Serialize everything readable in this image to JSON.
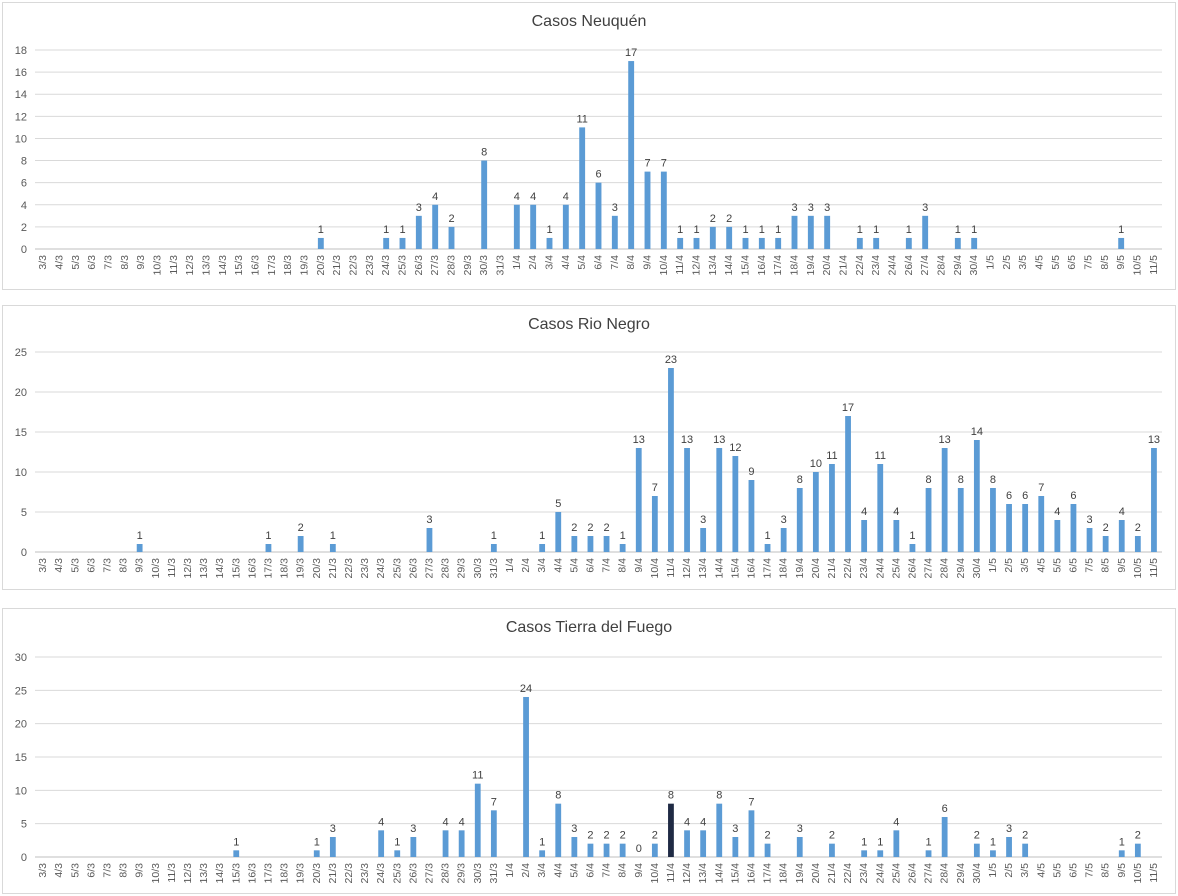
{
  "chart_data": [
    {
      "type": "bar",
      "title": "Casos Neuquén",
      "ylim": [
        0,
        18
      ],
      "ytick_step": 2,
      "grid": true,
      "color": "#5b9bd5",
      "categories": [
        "3/3",
        "4/3",
        "5/3",
        "6/3",
        "7/3",
        "8/3",
        "9/3",
        "10/3",
        "11/3",
        "12/3",
        "13/3",
        "14/3",
        "15/3",
        "16/3",
        "17/3",
        "18/3",
        "19/3",
        "20/3",
        "21/3",
        "22/3",
        "23/3",
        "24/3",
        "25/3",
        "26/3",
        "27/3",
        "28/3",
        "29/3",
        "30/3",
        "31/3",
        "1/4",
        "2/4",
        "3/4",
        "4/4",
        "5/4",
        "6/4",
        "7/4",
        "8/4",
        "9/4",
        "10/4",
        "11/4",
        "12/4",
        "13/4",
        "14/4",
        "15/4",
        "16/4",
        "17/4",
        "18/4",
        "19/4",
        "20/4",
        "21/4",
        "22/4",
        "23/4",
        "24/4",
        "26/4",
        "27/4",
        "28/4",
        "29/4",
        "30/4",
        "1/5",
        "2/5",
        "3/5",
        "4/5",
        "5/5",
        "6/5",
        "7/5",
        "8/5",
        "9/5",
        "10/5",
        "11/5"
      ],
      "values": [
        null,
        null,
        null,
        null,
        null,
        null,
        null,
        null,
        null,
        null,
        null,
        null,
        null,
        null,
        null,
        null,
        null,
        1,
        null,
        null,
        null,
        1,
        1,
        3,
        4,
        2,
        null,
        8,
        null,
        4,
        4,
        1,
        4,
        11,
        6,
        3,
        17,
        7,
        7,
        1,
        1,
        2,
        2,
        1,
        1,
        1,
        3,
        3,
        3,
        null,
        1,
        1,
        null,
        1,
        3,
        null,
        1,
        1,
        null,
        null,
        null,
        null,
        null,
        null,
        null,
        null,
        1,
        null,
        null
      ]
    },
    {
      "type": "bar",
      "title": "Casos Rio Negro",
      "ylim": [
        0,
        25
      ],
      "ytick_step": 5,
      "grid": true,
      "color": "#5b9bd5",
      "categories": [
        "3/3",
        "4/3",
        "5/3",
        "6/3",
        "7/3",
        "8/3",
        "9/3",
        "10/3",
        "11/3",
        "12/3",
        "13/3",
        "14/3",
        "15/3",
        "16/3",
        "17/3",
        "18/3",
        "19/3",
        "20/3",
        "21/3",
        "22/3",
        "23/3",
        "24/3",
        "25/3",
        "26/3",
        "27/3",
        "28/3",
        "29/3",
        "30/3",
        "31/3",
        "1/4",
        "2/4",
        "3/4",
        "4/4",
        "5/4",
        "6/4",
        "7/4",
        "8/4",
        "9/4",
        "10/4",
        "11/4",
        "12/4",
        "13/4",
        "14/4",
        "15/4",
        "16/4",
        "17/4",
        "18/4",
        "19/4",
        "20/4",
        "21/4",
        "22/4",
        "23/4",
        "24/4",
        "25/4",
        "26/4",
        "27/4",
        "28/4",
        "29/4",
        "30/4",
        "1/5",
        "2/5",
        "3/5",
        "4/5",
        "5/5",
        "6/5",
        "7/5",
        "8/5",
        "9/5",
        "10/5",
        "11/5"
      ],
      "values": [
        null,
        null,
        null,
        null,
        null,
        null,
        1,
        null,
        null,
        null,
        null,
        null,
        null,
        null,
        1,
        null,
        2,
        null,
        1,
        null,
        null,
        null,
        null,
        null,
        3,
        null,
        null,
        null,
        1,
        null,
        null,
        1,
        5,
        2,
        2,
        2,
        1,
        13,
        7,
        23,
        13,
        3,
        13,
        12,
        9,
        1,
        3,
        8,
        10,
        11,
        17,
        4,
        11,
        4,
        1,
        8,
        13,
        8,
        14,
        8,
        6,
        6,
        7,
        4,
        6,
        3,
        2,
        4,
        2,
        13
      ]
    },
    {
      "type": "bar",
      "title": "Casos Tierra del Fuego",
      "ylim": [
        0,
        30
      ],
      "ytick_step": 5,
      "grid": true,
      "color": "#5b9bd5",
      "highlight_color": "#1f2a44",
      "highlight_index": 39,
      "categories": [
        "3/3",
        "4/3",
        "5/3",
        "6/3",
        "7/3",
        "8/3",
        "9/3",
        "10/3",
        "11/3",
        "12/3",
        "13/3",
        "14/3",
        "15/3",
        "16/3",
        "17/3",
        "18/3",
        "19/3",
        "20/3",
        "21/3",
        "22/3",
        "23/3",
        "24/3",
        "25/3",
        "26/3",
        "27/3",
        "28/3",
        "29/3",
        "30/3",
        "31/3",
        "1/4",
        "2/4",
        "3/4",
        "4/4",
        "5/4",
        "6/4",
        "7/4",
        "8/4",
        "9/4",
        "10/4",
        "11/4",
        "12/4",
        "13/4",
        "14/4",
        "15/4",
        "16/4",
        "17/4",
        "18/4",
        "19/4",
        "20/4",
        "21/4",
        "22/4",
        "23/4",
        "24/4",
        "25/4",
        "26/4",
        "27/4",
        "28/4",
        "29/4",
        "30/4",
        "1/5",
        "2/5",
        "3/5",
        "4/5",
        "5/5",
        "6/5",
        "7/5",
        "8/5",
        "9/5",
        "10/5",
        "11/5"
      ],
      "values": [
        null,
        null,
        null,
        null,
        null,
        null,
        null,
        null,
        null,
        null,
        null,
        null,
        1,
        null,
        null,
        null,
        null,
        1,
        3,
        null,
        null,
        4,
        1,
        3,
        null,
        4,
        4,
        11,
        7,
        null,
        24,
        1,
        8,
        3,
        2,
        2,
        2,
        0,
        2,
        8,
        4,
        4,
        8,
        3,
        7,
        2,
        null,
        3,
        null,
        2,
        null,
        1,
        1,
        4,
        null,
        1,
        6,
        null,
        2,
        1,
        3,
        2,
        null,
        null,
        null,
        null,
        null,
        1,
        2,
        null
      ]
    }
  ]
}
